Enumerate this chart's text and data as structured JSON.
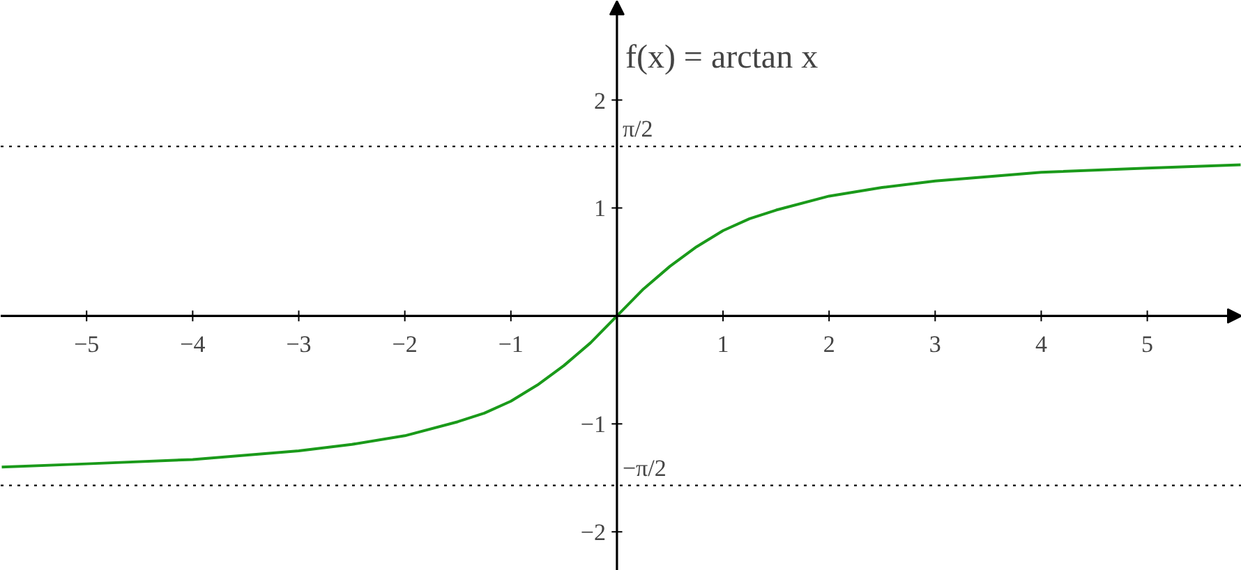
{
  "chart_data": {
    "type": "line",
    "annotations": [
      "f(x) = arctan x"
    ],
    "x": [
      -5.8,
      -5,
      -4,
      -3,
      -2.5,
      -2,
      -1.5,
      -1.25,
      -1,
      -0.75,
      -0.5,
      -0.25,
      0,
      0.25,
      0.5,
      0.75,
      1,
      1.25,
      1.5,
      2,
      2.5,
      3,
      4,
      5,
      5.88
    ],
    "series": [
      {
        "color": "#1a9a1a",
        "values": [
          -1.4,
          -1.37,
          -1.33,
          -1.25,
          -1.19,
          -1.11,
          -0.98,
          -0.9,
          -0.79,
          -0.64,
          -0.46,
          -0.25,
          0,
          0.25,
          0.46,
          0.64,
          0.79,
          0.9,
          0.98,
          1.11,
          1.19,
          1.25,
          1.33,
          1.37,
          1.4
        ]
      }
    ],
    "xlim": [
      -5.81,
      5.89
    ],
    "ylim": [
      -2.36,
      2.92
    ],
    "xticks": [
      {
        "value": -5,
        "label": "−5"
      },
      {
        "value": -4,
        "label": "−4"
      },
      {
        "value": -3,
        "label": "−3"
      },
      {
        "value": -2,
        "label": "−2"
      },
      {
        "value": -1,
        "label": "−1"
      },
      1,
      2,
      3,
      4,
      5
    ],
    "yticks": [
      {
        "value": -2,
        "label": "−2"
      },
      {
        "value": -1,
        "label": "−1"
      },
      1,
      2
    ],
    "ref_lines": [
      {
        "axis": "y",
        "value": 1.57,
        "label": "π/2",
        "color": "#000000",
        "line_style": "dotted"
      },
      {
        "axis": "y",
        "value": -1.57,
        "label": "−π/2",
        "color": "#000000",
        "line_style": "dotted"
      }
    ],
    "grid": false,
    "marker": "none",
    "line_style": "solid"
  }
}
